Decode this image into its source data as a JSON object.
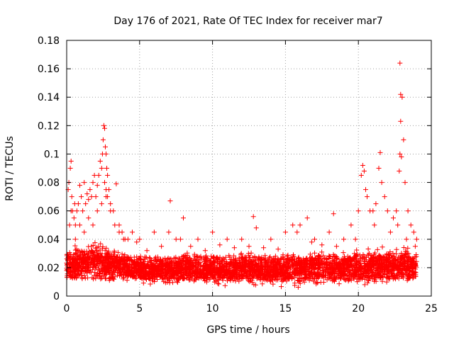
{
  "chart_data": {
    "type": "scatter",
    "title": "Day 176 of 2021, Rate Of TEC Index for receiver mar7",
    "xlabel": "GPS time / hours",
    "ylabel": "ROTI / TECUs",
    "xlim": [
      0,
      25
    ],
    "ylim": [
      0,
      0.18
    ],
    "xticks": [
      0,
      5,
      10,
      15,
      20,
      25
    ],
    "xtick_labels": [
      "0",
      "5",
      "10",
      "15",
      "20",
      "25"
    ],
    "yticks": [
      0,
      0.02,
      0.04,
      0.06,
      0.08,
      0.1,
      0.12,
      0.14,
      0.16,
      0.18
    ],
    "ytick_labels": [
      "0",
      "0.02",
      "0.04",
      "0.06",
      "0.08",
      "0.1",
      "0.12",
      "0.14",
      "0.16",
      "0.18"
    ],
    "grid": true,
    "marker": "plus",
    "color": "#ff0000",
    "series": [
      {
        "name": "ROTI",
        "x": [
          0.0,
          0.1,
          0.15,
          0.2,
          0.25,
          0.3,
          0.35,
          0.4,
          0.5,
          0.55,
          0.6,
          0.7,
          0.8,
          0.9,
          1.0,
          1.1,
          1.2,
          1.3,
          1.4,
          1.5,
          1.6,
          1.7,
          1.8,
          1.9,
          2.0,
          2.1,
          2.2,
          2.3,
          2.4,
          2.45,
          2.5,
          2.55,
          2.6,
          2.65,
          2.7,
          2.75,
          2.8,
          2.9,
          3.0,
          3.2,
          3.4,
          3.6,
          3.8,
          4.0,
          4.5,
          5.0,
          6.0,
          7.0,
          7.1,
          7.5,
          8.0,
          9.0,
          10.0,
          11.0,
          12.0,
          12.8,
          13.0,
          14.0,
          15.0,
          15.5,
          16.0,
          16.5,
          17.0,
          18.0,
          18.3,
          19.0,
          19.5,
          20.0,
          20.2,
          20.3,
          20.4,
          20.5,
          20.6,
          20.8,
          21.0,
          21.2,
          21.4,
          21.5,
          21.6,
          21.8,
          22.0,
          22.4,
          22.6,
          22.7,
          22.8,
          22.85,
          22.9,
          23.0,
          23.1,
          23.2,
          23.4,
          23.6,
          23.8,
          24.0,
          0.3,
          0.6,
          0.9,
          1.2,
          1.5,
          1.8,
          2.1,
          2.4,
          2.7,
          3.0,
          3.3,
          3.6,
          3.9,
          4.2,
          4.8,
          5.5,
          6.5,
          7.8,
          8.5,
          9.5,
          10.5,
          11.5,
          12.5,
          13.5,
          14.5,
          15.8,
          16.8,
          17.5,
          18.5,
          19.8,
          21.1,
          22.2,
          23.3,
          23.9,
          2.6,
          2.7,
          2.8,
          22.85,
          22.9,
          22.95
        ],
        "y": [
          0.018,
          0.075,
          0.08,
          0.05,
          0.09,
          0.095,
          0.07,
          0.06,
          0.055,
          0.065,
          0.05,
          0.06,
          0.065,
          0.078,
          0.07,
          0.06,
          0.08,
          0.065,
          0.072,
          0.068,
          0.075,
          0.07,
          0.08,
          0.085,
          0.07,
          0.078,
          0.085,
          0.095,
          0.09,
          0.1,
          0.11,
          0.12,
          0.118,
          0.105,
          0.1,
          0.09,
          0.085,
          0.075,
          0.065,
          0.06,
          0.079,
          0.05,
          0.045,
          0.04,
          0.045,
          0.04,
          0.045,
          0.045,
          0.067,
          0.04,
          0.055,
          0.04,
          0.045,
          0.04,
          0.04,
          0.056,
          0.048,
          0.04,
          0.045,
          0.05,
          0.05,
          0.055,
          0.04,
          0.045,
          0.058,
          0.04,
          0.05,
          0.06,
          0.085,
          0.092,
          0.088,
          0.075,
          0.07,
          0.06,
          0.06,
          0.065,
          0.09,
          0.101,
          0.08,
          0.07,
          0.06,
          0.055,
          0.06,
          0.05,
          0.088,
          0.1,
          0.123,
          0.14,
          0.11,
          0.08,
          0.06,
          0.05,
          0.045,
          0.04,
          0.06,
          0.04,
          0.05,
          0.045,
          0.055,
          0.05,
          0.06,
          0.065,
          0.07,
          0.06,
          0.05,
          0.045,
          0.04,
          0.04,
          0.038,
          0.032,
          0.035,
          0.04,
          0.035,
          0.032,
          0.036,
          0.034,
          0.035,
          0.034,
          0.033,
          0.045,
          0.038,
          0.036,
          0.035,
          0.04,
          0.05,
          0.045,
          0.04,
          0.035,
          0.08,
          0.075,
          0.07,
          0.164,
          0.142,
          0.098
        ],
        "band": {
          "x": [
            0,
            1,
            2,
            3,
            4,
            5,
            6,
            7,
            8,
            9,
            10,
            11,
            12,
            13,
            14,
            15,
            16,
            17,
            18,
            19,
            20,
            21,
            22,
            23,
            24
          ],
          "low": [
            0.01,
            0.008,
            0.008,
            0.008,
            0.008,
            0.007,
            0.006,
            0.006,
            0.006,
            0.005,
            0.005,
            0.005,
            0.006,
            0.006,
            0.005,
            0.005,
            0.004,
            0.005,
            0.006,
            0.006,
            0.006,
            0.006,
            0.006,
            0.006,
            0.008
          ],
          "high": [
            0.036,
            0.04,
            0.042,
            0.038,
            0.032,
            0.03,
            0.028,
            0.03,
            0.032,
            0.032,
            0.032,
            0.03,
            0.032,
            0.032,
            0.031,
            0.032,
            0.034,
            0.034,
            0.034,
            0.034,
            0.036,
            0.036,
            0.038,
            0.038,
            0.034
          ]
        }
      }
    ]
  }
}
